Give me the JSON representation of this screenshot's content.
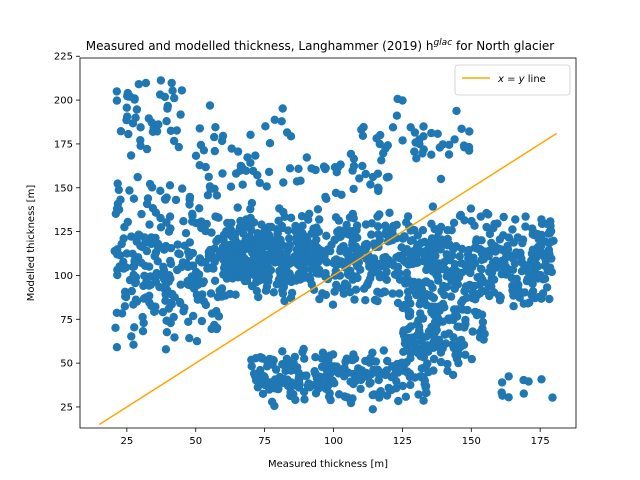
{
  "chart_data": {
    "type": "scatter",
    "title": "Measured and modelled thickness, Langhammer (2019) h^glac for North glacier",
    "title_parts": {
      "prefix": "Measured and modelled thickness, Langhammer (2019) h",
      "superscript": "glac",
      "suffix": " for North glacier"
    },
    "xlabel": "Measured thickness [m]",
    "ylabel": "Modelled thickness [m]",
    "xlim": [
      8,
      188
    ],
    "ylim": [
      13,
      224
    ],
    "xticks": [
      25,
      50,
      75,
      100,
      125,
      150,
      175
    ],
    "yticks": [
      25,
      50,
      75,
      100,
      125,
      150,
      175,
      200,
      225
    ],
    "grid": false,
    "legend_position": "top-right",
    "series": [
      {
        "kind": "scatter",
        "color": "#1f77b4",
        "clusters": [
          {
            "x": [
              20,
              60
            ],
            "y": [
              55,
              160
            ],
            "n": 260
          },
          {
            "x": [
              60,
              95
            ],
            "y": [
              85,
              140
            ],
            "n": 360
          },
          {
            "x": [
              95,
              180
            ],
            "y": [
              80,
              140
            ],
            "n": 520
          },
          {
            "x": [
              125,
              155
            ],
            "y": [
              40,
              110
            ],
            "n": 160
          },
          {
            "x": [
              70,
              135
            ],
            "y": [
              23,
              60
            ],
            "n": 230
          },
          {
            "x": [
              20,
              45
            ],
            "y": [
              165,
              215
            ],
            "n": 45
          },
          {
            "x": [
              50,
              85
            ],
            "y": [
              140,
              200
            ],
            "n": 45
          },
          {
            "x": [
              85,
              120
            ],
            "y": [
              140,
              175
            ],
            "n": 35
          },
          {
            "x": [
              110,
              150
            ],
            "y": [
              150,
              205
            ],
            "n": 40
          },
          {
            "x": [
              160,
              180
            ],
            "y": [
              25,
              45
            ],
            "n": 10
          }
        ]
      },
      {
        "name": "x = y line",
        "name_parts": {
          "var1": "x",
          "op": " = ",
          "var2": "y",
          "suffix": " line"
        },
        "kind": "line",
        "color": "#ffa500",
        "x": [
          15,
          181
        ],
        "y": [
          15,
          181
        ]
      }
    ]
  }
}
